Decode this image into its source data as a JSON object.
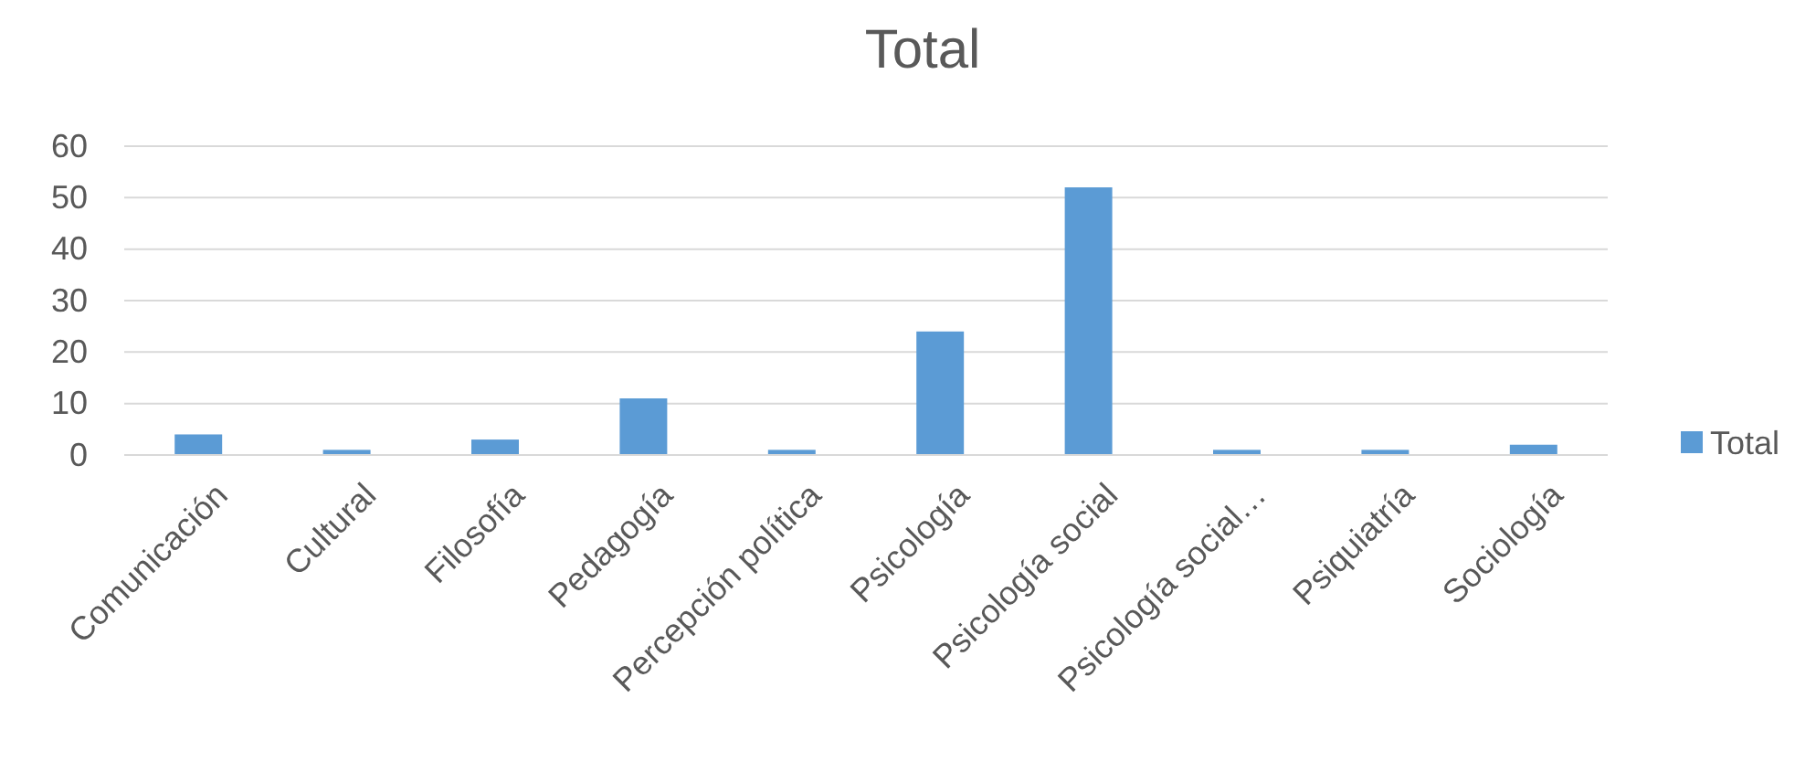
{
  "chart_data": {
    "type": "bar",
    "title": "Total",
    "categories": [
      "Comunicación",
      "Cultural",
      "Filosofía",
      "Pedagogía",
      "Percepción política",
      "Psicología",
      "Psicología social",
      "Psicología social…",
      "Psiquiatría",
      "Sociología"
    ],
    "series": [
      {
        "name": "Total",
        "color": "#5b9bd5",
        "values": [
          4,
          1,
          3,
          11,
          1,
          24,
          52,
          1,
          1,
          2
        ]
      }
    ],
    "ylim": [
      0,
      60
    ],
    "yticks": [
      0,
      10,
      20,
      30,
      40,
      50,
      60
    ],
    "grid": "y",
    "legend": "right"
  }
}
